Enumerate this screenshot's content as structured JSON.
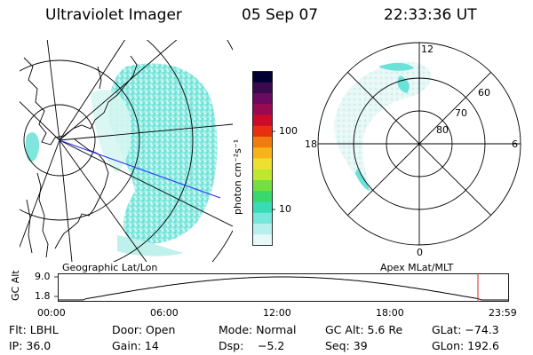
{
  "header": {
    "instrument": "Ultraviolet Imager",
    "date": "05 Sep 07",
    "time": "22:33:36 UT"
  },
  "left_panel": {
    "label": "Geographic Lat/Lon"
  },
  "colorbar": {
    "unit_label": "photon cm⁻²s⁻¹",
    "tick_labels": [
      "100",
      "10"
    ],
    "colors": [
      "#000033",
      "#3a0a4e",
      "#6a0a60",
      "#9a0a50",
      "#cc0a2a",
      "#e83010",
      "#f07c10",
      "#f6b41a",
      "#eee030",
      "#bde830",
      "#72e040",
      "#38d86c",
      "#38dcb4",
      "#78e6da",
      "#b6efee",
      "#e6f8f8"
    ]
  },
  "right_panel": {
    "label": "Apex MLat/MLT",
    "lat_labels": [
      "60",
      "70",
      "80"
    ],
    "mlt_labels": {
      "top": "12",
      "right": "6",
      "bottom": "0",
      "left": "18"
    }
  },
  "orbit": {
    "ylabel": "GC Alt",
    "y_ticks": [
      "9.0",
      "1.8"
    ],
    "x_ticks": [
      "00:00",
      "06:00",
      "12:00",
      "18:00",
      "23:59"
    ]
  },
  "footer": {
    "row1": [
      "Flt: LBHL",
      "Door: Open",
      "Mode: Normal",
      "GC Alt: 5.6 Re",
      "GLat: −74.3"
    ],
    "row2": [
      "IP: 36.0",
      "Gain: 14",
      "Dsp:",
      "−5.2",
      "Seq: 39",
      "GLon: 192.6"
    ]
  },
  "colors": {
    "cyan": "#5ee6dc",
    "pale": "#c8f4f0",
    "track": "#2a2aff",
    "marker": "#e02020"
  }
}
